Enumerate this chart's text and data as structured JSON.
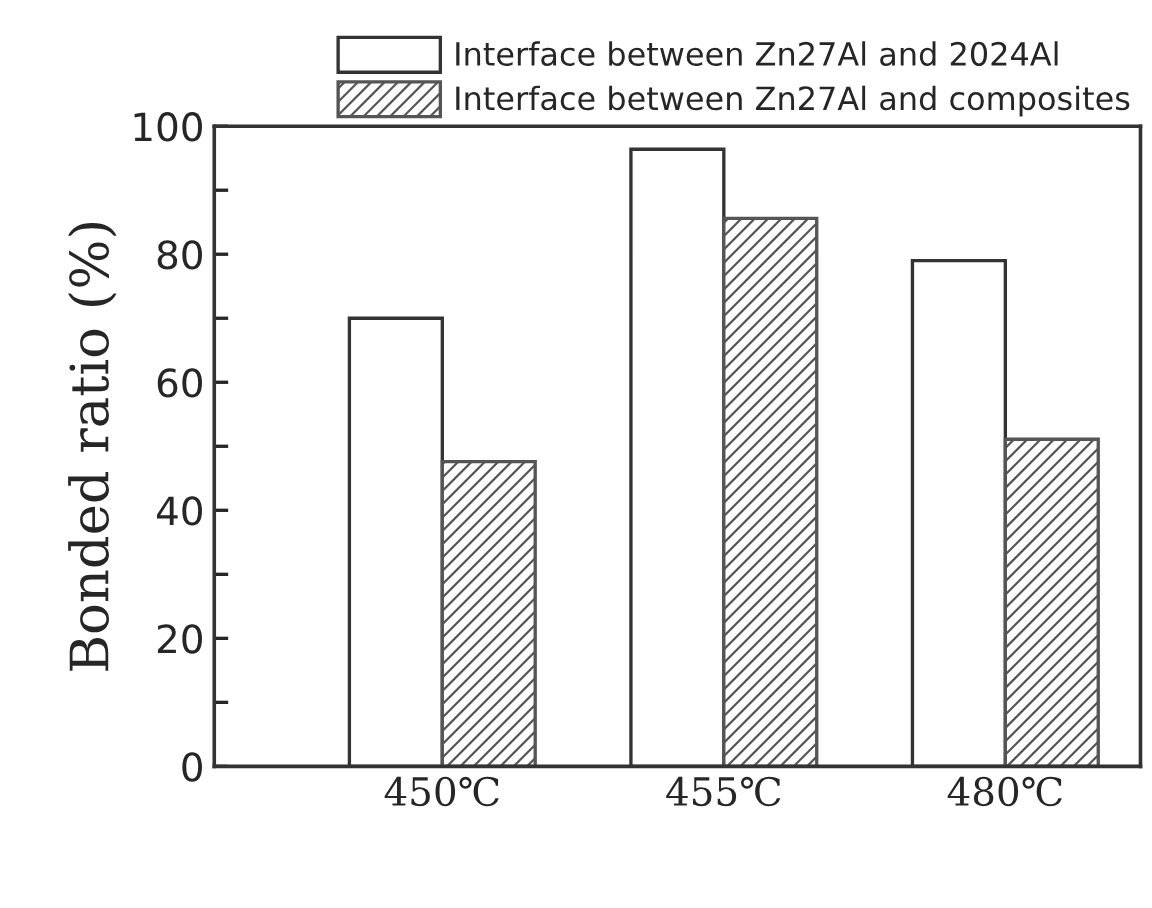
{
  "chart_data": {
    "type": "bar",
    "ylabel": "Bonded ratio (%)",
    "categories": [
      "450℃",
      "455℃",
      "480℃"
    ],
    "series": [
      {
        "name": "Interface between Zn27Al and 2024Al",
        "color": "#ffffff",
        "values": [
          70,
          96.4,
          79
        ]
      },
      {
        "name": "Interface between Zn27Al and composites",
        "color": "#555555",
        "values": [
          47.6,
          85.6,
          51.1
        ]
      }
    ],
    "ylim": [
      0,
      100
    ],
    "yticks": [
      0,
      {
        "value": 10,
        "label": null
      },
      20,
      {
        "value": 30,
        "label": null
      },
      40,
      {
        "value": 50,
        "label": null
      },
      60,
      {
        "value": 70,
        "label": null
      },
      80,
      {
        "value": 90,
        "label": null
      },
      100
    ],
    "legend": "top right",
    "grid": false
  }
}
